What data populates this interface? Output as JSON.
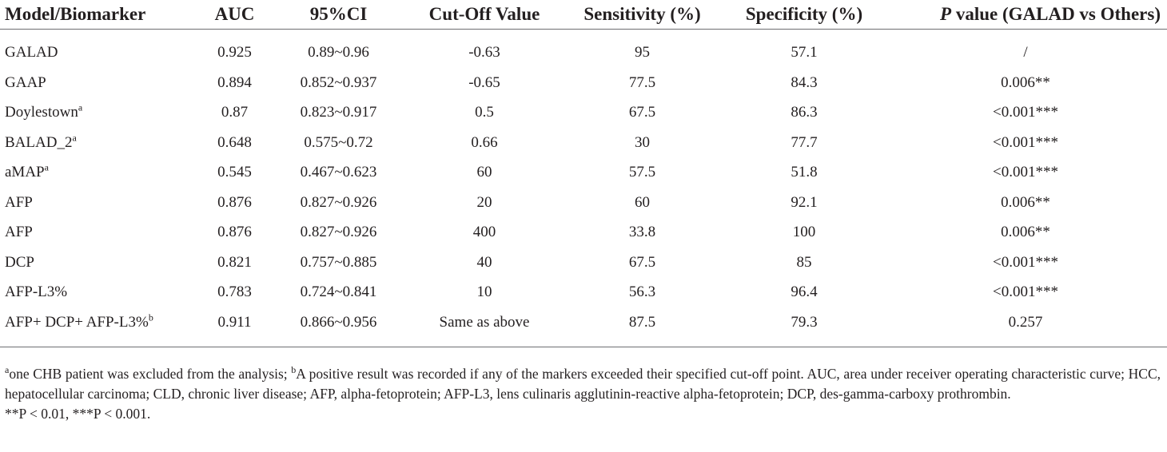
{
  "table": {
    "headers": {
      "model": "Model/Biomarker",
      "auc": "AUC",
      "ci": "95%CI",
      "cutoff": "Cut-Off Value",
      "sensitivity": "Sensitivity (%)",
      "specificity": "Specificity (%)",
      "pvalue_italic": "P",
      "pvalue_rest": " value (GALAD vs Others)"
    },
    "rows": [
      {
        "model": "GALAD",
        "sup": "",
        "auc": "0.925",
        "ci": "0.89~0.96",
        "cutoff": "-0.63",
        "sens": "95",
        "spec": "57.1",
        "p": "/"
      },
      {
        "model": "GAAP",
        "sup": "",
        "auc": "0.894",
        "ci": "0.852~0.937",
        "cutoff": "-0.65",
        "sens": "77.5",
        "spec": "84.3",
        "p": "0.006**"
      },
      {
        "model": "Doylestown",
        "sup": "a",
        "auc": "0.87",
        "ci": "0.823~0.917",
        "cutoff": "0.5",
        "sens": "67.5",
        "spec": "86.3",
        "p": "<0.001***"
      },
      {
        "model": "BALAD_2",
        "sup": "a",
        "auc": "0.648",
        "ci": "0.575~0.72",
        "cutoff": "0.66",
        "sens": "30",
        "spec": "77.7",
        "p": "<0.001***"
      },
      {
        "model": "aMAP",
        "sup": "a",
        "auc": "0.545",
        "ci": "0.467~0.623",
        "cutoff": "60",
        "sens": "57.5",
        "spec": "51.8",
        "p": "<0.001***"
      },
      {
        "model": "AFP",
        "sup": "",
        "auc": "0.876",
        "ci": "0.827~0.926",
        "cutoff": "20",
        "sens": "60",
        "spec": "92.1",
        "p": "0.006**"
      },
      {
        "model": "AFP",
        "sup": "",
        "auc": "0.876",
        "ci": "0.827~0.926",
        "cutoff": "400",
        "sens": "33.8",
        "spec": "100",
        "p": "0.006**"
      },
      {
        "model": "DCP",
        "sup": "",
        "auc": "0.821",
        "ci": "0.757~0.885",
        "cutoff": "40",
        "sens": "67.5",
        "spec": "85",
        "p": "<0.001***"
      },
      {
        "model": "AFP-L3%",
        "sup": "",
        "auc": "0.783",
        "ci": "0.724~0.841",
        "cutoff": "10",
        "sens": "56.3",
        "spec": "96.4",
        "p": "<0.001***"
      },
      {
        "model": "AFP+ DCP+ AFP-L3%",
        "sup": "b",
        "auc": "0.911",
        "ci": "0.866~0.956",
        "cutoff": "Same as above",
        "sens": "87.5",
        "spec": "79.3",
        "p": "0.257"
      }
    ]
  },
  "footnotes": {
    "sup_a": "a",
    "note_a": "one CHB patient was excluded from the analysis; ",
    "sup_b": "b",
    "note_b": "A positive result was recorded if any of the markers exceeded their specified cut-off point. AUC, area under receiver operating characteristic curve; HCC, hepatocellular carcinoma; CLD, chronic liver disease; AFP, alpha-fetoprotein; AFP-L3, lens culinaris agglutinin-reactive alpha-fetoprotein; DCP, des-gamma-carboxy prothrombin.",
    "significance": "**P < 0.01, ***P < 0.001."
  }
}
